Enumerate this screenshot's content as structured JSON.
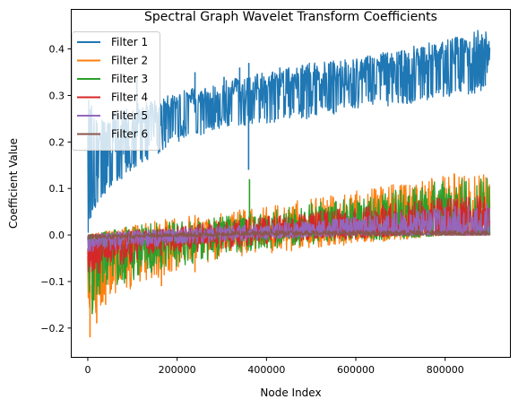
{
  "chart_data": {
    "type": "line",
    "title": "Spectral Graph Wavelet Transform Coefficients",
    "xlabel": "Node Index",
    "ylabel": "Coefficient Value",
    "xlim": [
      -36000,
      945000
    ],
    "ylim": [
      -0.262,
      0.484
    ],
    "x_ticks": [
      0,
      200000,
      400000,
      600000,
      800000
    ],
    "x_tick_labels": [
      "0",
      "200000",
      "400000",
      "600000",
      "800000"
    ],
    "y_ticks": [
      -0.2,
      -0.1,
      0.0,
      0.1,
      0.2,
      0.3,
      0.4
    ],
    "y_tick_labels": [
      "−0.2",
      "−0.1",
      "0.0",
      "0.1",
      "0.2",
      "0.3",
      "0.4"
    ],
    "grid": false,
    "legend_position": "top-left",
    "series_note_x_range": [
      0,
      900000
    ],
    "series": [
      {
        "name": "Filter 1",
        "color": "#1f77b4",
        "upper": [
          [
            0,
            0.3
          ],
          [
            20000,
            0.25
          ],
          [
            60000,
            0.27
          ],
          [
            100000,
            0.28
          ],
          [
            150000,
            0.29
          ],
          [
            200000,
            0.31
          ],
          [
            250000,
            0.32
          ],
          [
            300000,
            0.33
          ],
          [
            345000,
            0.34
          ],
          [
            400000,
            0.35
          ],
          [
            500000,
            0.37
          ],
          [
            600000,
            0.38
          ],
          [
            700000,
            0.4
          ],
          [
            800000,
            0.42
          ],
          [
            900000,
            0.45
          ]
        ],
        "lower": [
          [
            0,
            0.0
          ],
          [
            10000,
            0.05
          ],
          [
            50000,
            0.1
          ],
          [
            100000,
            0.14
          ],
          [
            150000,
            0.17
          ],
          [
            200000,
            0.2
          ],
          [
            250000,
            0.21
          ],
          [
            300000,
            0.23
          ],
          [
            400000,
            0.24
          ],
          [
            500000,
            0.25
          ],
          [
            600000,
            0.27
          ],
          [
            700000,
            0.28
          ],
          [
            800000,
            0.29
          ],
          [
            900000,
            0.31
          ]
        ],
        "spikes": [
          [
            110000,
            0.34
          ],
          [
            240000,
            0.35
          ],
          [
            305000,
            0.34
          ],
          [
            340000,
            0.36
          ],
          [
            360000,
            0.14
          ],
          [
            360500,
            0.37
          ],
          [
            430000,
            0.36
          ],
          [
            530000,
            0.35
          ],
          [
            575000,
            0.36
          ],
          [
            620000,
            0.36
          ]
        ]
      },
      {
        "name": "Filter 2",
        "color": "#ff7f0e",
        "upper": [
          [
            0,
            0.0
          ],
          [
            100000,
            0.02
          ],
          [
            200000,
            0.04
          ],
          [
            300000,
            0.05
          ],
          [
            400000,
            0.06
          ],
          [
            500000,
            0.08
          ],
          [
            600000,
            0.1
          ],
          [
            700000,
            0.11
          ],
          [
            800000,
            0.13
          ],
          [
            900000,
            0.14
          ]
        ],
        "lower": [
          [
            0,
            -0.22
          ],
          [
            50000,
            -0.17
          ],
          [
            100000,
            -0.12
          ],
          [
            200000,
            -0.08
          ],
          [
            300000,
            -0.05
          ],
          [
            400000,
            -0.04
          ],
          [
            500000,
            -0.03
          ],
          [
            600000,
            -0.02
          ],
          [
            700000,
            -0.01
          ],
          [
            800000,
            0.0
          ],
          [
            900000,
            0.0
          ]
        ],
        "spikes": [
          [
            5000,
            -0.22
          ],
          [
            20000,
            -0.19
          ],
          [
            40000,
            -0.15
          ],
          [
            165000,
            -0.11
          ],
          [
            240000,
            -0.08
          ]
        ]
      },
      {
        "name": "Filter 3",
        "color": "#2ca02c",
        "upper": [
          [
            0,
            0.0
          ],
          [
            100000,
            0.02
          ],
          [
            200000,
            0.03
          ],
          [
            300000,
            0.04
          ],
          [
            400000,
            0.05
          ],
          [
            500000,
            0.07
          ],
          [
            600000,
            0.08
          ],
          [
            700000,
            0.1
          ],
          [
            800000,
            0.12
          ],
          [
            900000,
            0.13
          ]
        ],
        "lower": [
          [
            0,
            -0.17
          ],
          [
            50000,
            -0.13
          ],
          [
            100000,
            -0.1
          ],
          [
            200000,
            -0.07
          ],
          [
            300000,
            -0.05
          ],
          [
            400000,
            -0.03
          ],
          [
            500000,
            -0.02
          ],
          [
            600000,
            -0.01
          ],
          [
            700000,
            -0.01
          ],
          [
            800000,
            0.0
          ],
          [
            900000,
            0.0
          ]
        ],
        "spikes": [
          [
            362000,
            0.12
          ],
          [
            10000,
            -0.17
          ]
        ]
      },
      {
        "name": "Filter 4",
        "color": "#d62728",
        "upper": [
          [
            0,
            0.0
          ],
          [
            100000,
            0.01
          ],
          [
            200000,
            0.02
          ],
          [
            300000,
            0.03
          ],
          [
            400000,
            0.04
          ],
          [
            500000,
            0.05
          ],
          [
            600000,
            0.06
          ],
          [
            700000,
            0.07
          ],
          [
            800000,
            0.08
          ],
          [
            900000,
            0.09
          ]
        ],
        "lower": [
          [
            0,
            -0.09
          ],
          [
            100000,
            -0.06
          ],
          [
            200000,
            -0.04
          ],
          [
            300000,
            -0.03
          ],
          [
            400000,
            -0.02
          ],
          [
            500000,
            -0.01
          ],
          [
            600000,
            -0.01
          ],
          [
            700000,
            0.0
          ],
          [
            800000,
            0.0
          ],
          [
            900000,
            0.0
          ]
        ],
        "spikes": []
      },
      {
        "name": "Filter 5",
        "color": "#9467bd",
        "upper": [
          [
            0,
            0.0
          ],
          [
            100000,
            0.01
          ],
          [
            200000,
            0.015
          ],
          [
            300000,
            0.02
          ],
          [
            400000,
            0.025
          ],
          [
            500000,
            0.03
          ],
          [
            600000,
            0.04
          ],
          [
            700000,
            0.05
          ],
          [
            800000,
            0.06
          ],
          [
            900000,
            0.07
          ]
        ],
        "lower": [
          [
            0,
            -0.04
          ],
          [
            100000,
            -0.03
          ],
          [
            200000,
            -0.02
          ],
          [
            300000,
            -0.015
          ],
          [
            400000,
            -0.01
          ],
          [
            500000,
            -0.005
          ],
          [
            600000,
            0.0
          ],
          [
            700000,
            0.0
          ],
          [
            800000,
            0.0
          ],
          [
            900000,
            0.0
          ]
        ],
        "spikes": []
      },
      {
        "name": "Filter 6",
        "color": "#8c564b",
        "upper": [
          [
            0,
            0.0
          ],
          [
            200000,
            0.005
          ],
          [
            400000,
            0.01
          ],
          [
            600000,
            0.01
          ],
          [
            800000,
            0.01
          ],
          [
            900000,
            0.01
          ]
        ],
        "lower": [
          [
            0,
            -0.01
          ],
          [
            200000,
            -0.005
          ],
          [
            400000,
            0.0
          ],
          [
            600000,
            0.0
          ],
          [
            800000,
            0.0
          ],
          [
            900000,
            0.0
          ]
        ],
        "spikes": []
      }
    ]
  }
}
